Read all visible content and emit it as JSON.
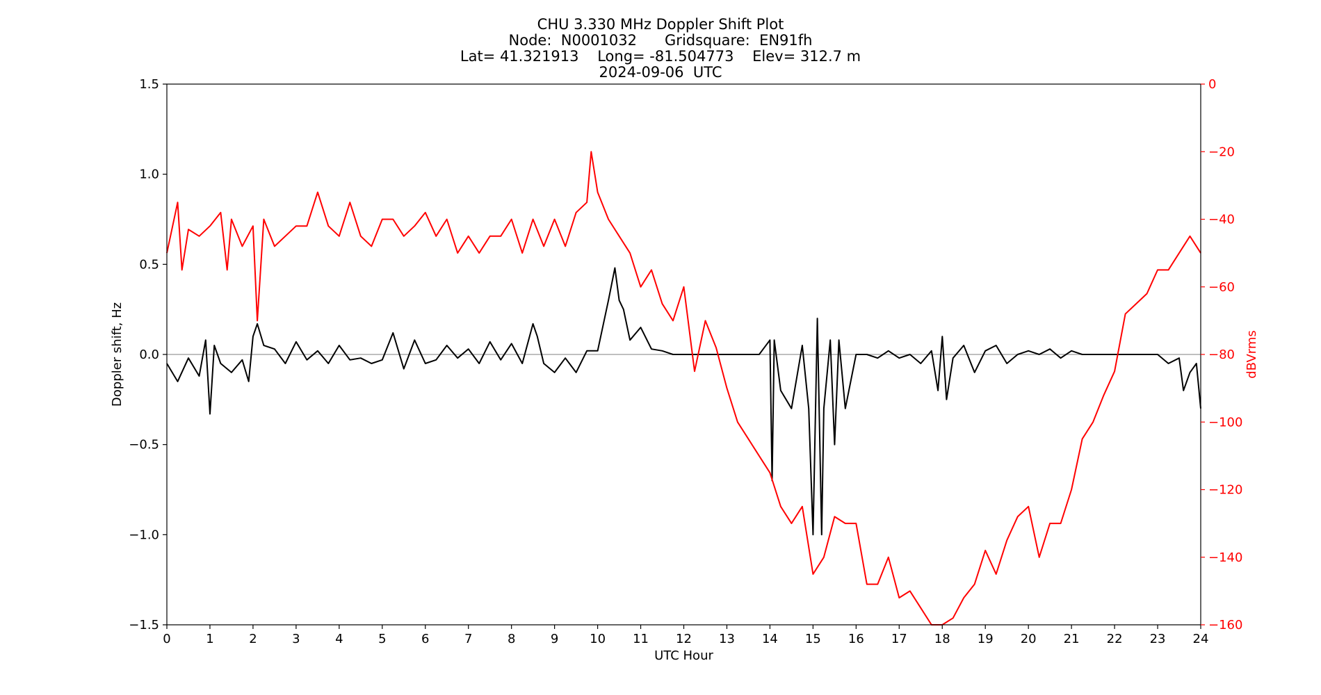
{
  "chart_data": {
    "type": "line",
    "title_lines": [
      "CHU 3.330 MHz Doppler Shift Plot",
      "Node:  N0001032      Gridsquare:  EN91fh",
      "Lat= 41.321913    Long= -81.504773    Elev= 312.7 m",
      "2024-09-06  UTC"
    ],
    "xlabel": "UTC Hour",
    "ylabel_left": "Doppler shift, Hz",
    "ylabel_right": "dBVrms",
    "xlim": [
      0,
      24
    ],
    "ylim_left": [
      -1.5,
      1.5
    ],
    "ylim_right": [
      -160,
      0
    ],
    "x_ticks": [
      "0",
      "1",
      "2",
      "3",
      "4",
      "5",
      "6",
      "7",
      "8",
      "9",
      "10",
      "11",
      "12",
      "13",
      "14",
      "15",
      "16",
      "17",
      "18",
      "19",
      "20",
      "21",
      "22",
      "23",
      "24"
    ],
    "y_ticks_left": [
      "−1.5",
      "−1.0",
      "−0.5",
      "0.0",
      "0.5",
      "1.0",
      "1.5"
    ],
    "y_ticks_left_values": [
      -1.5,
      -1.0,
      -0.5,
      0.0,
      0.5,
      1.0,
      1.5
    ],
    "y_ticks_right": [
      "−160",
      "−140",
      "−120",
      "−100",
      "−80",
      "−60",
      "−40",
      "−20",
      "0"
    ],
    "y_ticks_right_values": [
      -160,
      -140,
      -120,
      -100,
      -80,
      -60,
      -40,
      -20,
      0
    ],
    "zero_line": 0.0,
    "colors": {
      "doppler": "#000000",
      "power": "#ff0000",
      "zero_line": "#999999",
      "right_axis": "#ff0000"
    },
    "series": [
      {
        "axis": "left",
        "x": [
          0,
          0.25,
          0.5,
          0.75,
          0.9,
          1.0,
          1.1,
          1.25,
          1.5,
          1.75,
          1.9,
          2.0,
          2.1,
          2.25,
          2.5,
          2.75,
          3.0,
          3.25,
          3.5,
          3.75,
          4.0,
          4.25,
          4.5,
          4.75,
          5.0,
          5.25,
          5.5,
          5.75,
          6.0,
          6.25,
          6.5,
          6.75,
          7.0,
          7.25,
          7.5,
          7.75,
          8.0,
          8.25,
          8.5,
          8.6,
          8.75,
          9.0,
          9.25,
          9.5,
          9.75,
          10.0,
          10.25,
          10.4,
          10.5,
          10.6,
          10.75,
          11.0,
          11.25,
          11.5,
          11.75,
          12.0,
          12.5,
          13.0,
          13.5,
          13.75,
          14.0,
          14.05,
          14.1,
          14.25,
          14.5,
          14.75,
          14.9,
          15.0,
          15.1,
          15.2,
          15.25,
          15.4,
          15.5,
          15.6,
          15.75,
          16.0,
          16.25,
          16.5,
          16.75,
          17.0,
          17.25,
          17.5,
          17.75,
          17.9,
          18.0,
          18.1,
          18.25,
          18.5,
          18.75,
          19.0,
          19.25,
          19.5,
          19.75,
          20.0,
          20.25,
          20.5,
          20.75,
          21.0,
          21.25,
          21.5,
          22.0,
          22.5,
          23.0,
          23.25,
          23.5,
          23.6,
          23.75,
          23.9,
          24.0
        ],
        "y": [
          -0.05,
          -0.15,
          -0.02,
          -0.12,
          0.08,
          -0.33,
          0.05,
          -0.05,
          -0.1,
          -0.03,
          -0.15,
          0.1,
          0.17,
          0.05,
          0.03,
          -0.05,
          0.07,
          -0.03,
          0.02,
          -0.05,
          0.05,
          -0.03,
          -0.02,
          -0.05,
          -0.03,
          0.12,
          -0.08,
          0.08,
          -0.05,
          -0.03,
          0.05,
          -0.02,
          0.03,
          -0.05,
          0.07,
          -0.03,
          0.06,
          -0.05,
          0.17,
          0.1,
          -0.05,
          -0.1,
          -0.02,
          -0.1,
          0.02,
          0.02,
          0.3,
          0.48,
          0.3,
          0.25,
          0.08,
          0.15,
          0.03,
          0.02,
          0.0,
          0.0,
          0.0,
          0.0,
          0.0,
          0.0,
          0.08,
          -0.7,
          0.08,
          -0.2,
          -0.3,
          0.05,
          -0.3,
          -1.0,
          0.2,
          -1.0,
          -0.3,
          0.08,
          -0.5,
          0.08,
          -0.3,
          0.0,
          0.0,
          -0.02,
          0.02,
          -0.02,
          0.0,
          -0.05,
          0.02,
          -0.2,
          0.1,
          -0.25,
          -0.02,
          0.05,
          -0.1,
          0.02,
          0.05,
          -0.05,
          0.0,
          0.02,
          0.0,
          0.03,
          -0.02,
          0.02,
          0.0,
          0.0,
          0.0,
          0.0,
          0.0,
          -0.05,
          -0.02,
          -0.2,
          -0.1,
          -0.05,
          -0.3
        ]
      },
      {
        "axis": "right",
        "x": [
          0,
          0.25,
          0.35,
          0.5,
          0.75,
          1.0,
          1.25,
          1.4,
          1.5,
          1.75,
          2.0,
          2.1,
          2.25,
          2.5,
          2.75,
          3.0,
          3.25,
          3.5,
          3.75,
          4.0,
          4.25,
          4.5,
          4.75,
          5.0,
          5.25,
          5.5,
          5.75,
          6.0,
          6.25,
          6.5,
          6.75,
          7.0,
          7.25,
          7.5,
          7.75,
          8.0,
          8.25,
          8.5,
          8.75,
          9.0,
          9.25,
          9.5,
          9.75,
          9.85,
          10.0,
          10.25,
          10.5,
          10.75,
          11.0,
          11.25,
          11.5,
          11.75,
          12.0,
          12.25,
          12.5,
          12.75,
          13.0,
          13.25,
          13.5,
          13.75,
          14.0,
          14.25,
          14.5,
          14.75,
          15.0,
          15.25,
          15.5,
          15.75,
          16.0,
          16.25,
          16.5,
          16.75,
          17.0,
          17.25,
          17.5,
          17.75,
          18.0,
          18.25,
          18.5,
          18.75,
          19.0,
          19.25,
          19.5,
          19.75,
          20.0,
          20.25,
          20.5,
          20.75,
          21.0,
          21.25,
          21.5,
          21.75,
          22.0,
          22.25,
          22.5,
          22.75,
          23.0,
          23.25,
          23.5,
          23.75,
          24.0
        ],
        "y": [
          -50,
          -35,
          -55,
          -43,
          -45,
          -42,
          -38,
          -55,
          -40,
          -48,
          -42,
          -70,
          -40,
          -48,
          -45,
          -42,
          -42,
          -32,
          -42,
          -45,
          -35,
          -45,
          -48,
          -40,
          -40,
          -45,
          -42,
          -38,
          -45,
          -40,
          -50,
          -45,
          -50,
          -45,
          -45,
          -40,
          -50,
          -40,
          -48,
          -40,
          -48,
          -38,
          -35,
          -20,
          -32,
          -40,
          -45,
          -50,
          -60,
          -55,
          -65,
          -70,
          -60,
          -85,
          -70,
          -78,
          -90,
          -100,
          -105,
          -110,
          -115,
          -125,
          -130,
          -125,
          -145,
          -140,
          -128,
          -130,
          -130,
          -148,
          -148,
          -140,
          -152,
          -150,
          -155,
          -160,
          -160,
          -158,
          -152,
          -148,
          -138,
          -145,
          -135,
          -128,
          -125,
          -140,
          -130,
          -130,
          -120,
          -105,
          -100,
          -92,
          -85,
          -68,
          -65,
          -62,
          -55,
          -55,
          -50,
          -45,
          -50
        ]
      }
    ]
  }
}
